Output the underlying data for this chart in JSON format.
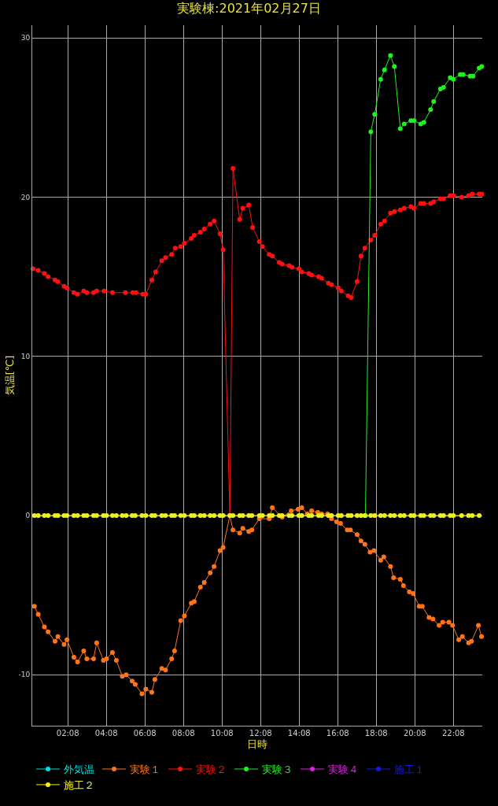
{
  "chart_data": {
    "type": "line",
    "title": "実験棟:2021年02月27日",
    "xlabel": "日時",
    "ylabel": "気温[℃]",
    "xlim": [
      0.29,
      23.63
    ],
    "ylim": [
      -13.2,
      30.8
    ],
    "xticks": [
      {
        "value": 2.133,
        "label": "02:08"
      },
      {
        "value": 4.133,
        "label": "04:08"
      },
      {
        "value": 6.133,
        "label": "06:08"
      },
      {
        "value": 8.133,
        "label": "08:08"
      },
      {
        "value": 10.133,
        "label": "10:08"
      },
      {
        "value": 12.133,
        "label": "12:08"
      },
      {
        "value": 14.133,
        "label": "14:08"
      },
      {
        "value": 16.133,
        "label": "16:08"
      },
      {
        "value": 18.133,
        "label": "18:08"
      },
      {
        "value": 20.133,
        "label": "20:08"
      },
      {
        "value": 22.133,
        "label": "22:08"
      }
    ],
    "yticks": [
      -10,
      0,
      10,
      20,
      30
    ],
    "grid": true,
    "legend": "bottom",
    "marker": "circle",
    "line_style": "solid",
    "series": [
      {
        "name": "外気温",
        "color": "#00e0e0"
      },
      {
        "name": "実験１",
        "color": "#ff7418",
        "x": [
          0.4,
          0.6,
          0.92,
          1.11,
          1.47,
          1.62,
          1.94,
          2.09,
          2.45,
          2.64,
          2.96,
          3.12,
          3.47,
          3.63,
          3.98,
          4.14,
          4.45,
          4.65,
          4.96,
          5.16,
          5.47,
          5.63,
          5.98,
          6.18,
          6.49,
          6.65,
          7.01,
          7.2,
          7.52,
          7.67,
          7.99,
          8.18,
          8.54,
          8.69,
          9.01,
          9.21,
          9.52,
          9.72,
          10.03,
          10.19,
          10.54,
          10.7,
          11.05,
          11.21,
          11.52,
          11.68,
          12.07,
          12.58,
          12.74,
          13.25,
          13.72,
          14.08,
          14.27,
          14.55,
          14.78,
          15.1,
          15.3,
          15.61,
          15.81,
          16.08,
          16.28,
          16.63,
          16.79,
          17.14,
          17.34,
          17.54,
          17.81,
          18.01,
          18.36,
          18.52,
          18.87,
          19.03,
          19.38,
          19.54,
          19.85,
          20.05,
          20.36,
          20.52,
          20.87,
          21.07,
          21.39,
          21.58,
          21.9,
          22.09,
          22.41,
          22.6,
          22.92,
          23.07,
          23.43,
          23.59
        ],
        "values": [
          -5.7,
          -6.2,
          -7.0,
          -7.3,
          -7.9,
          -7.6,
          -8.1,
          -7.8,
          -8.9,
          -9.2,
          -8.5,
          -9.0,
          -9.0,
          -8.0,
          -9.1,
          -9.0,
          -8.6,
          -9.1,
          -10.1,
          -10.0,
          -10.4,
          -10.6,
          -11.2,
          -10.9,
          -11.1,
          -10.3,
          -9.6,
          -9.7,
          -9.0,
          -8.5,
          -6.6,
          -6.3,
          -5.5,
          -5.4,
          -4.5,
          -4.2,
          -3.6,
          -3.2,
          -2.2,
          -2.0,
          0.0,
          -0.9,
          -1.1,
          -0.8,
          -1.0,
          -0.9,
          -0.2,
          -0.2,
          0.5,
          -0.1,
          0.3,
          0.4,
          0.5,
          0.1,
          0.3,
          0.2,
          0.1,
          0.1,
          -0.2,
          -0.4,
          -0.5,
          -0.9,
          -0.9,
          -1.2,
          -1.6,
          -1.8,
          -2.3,
          -2.2,
          -2.8,
          -2.6,
          -3.2,
          -3.9,
          -4.0,
          -4.4,
          -4.8,
          -4.9,
          -5.7,
          -5.7,
          -6.4,
          -6.5,
          -6.9,
          -6.7,
          -6.7,
          -6.9,
          -7.8,
          -7.6,
          -8.0,
          -7.9,
          -6.9,
          -7.6
        ]
      },
      {
        "name": "実験２",
        "color": "#ff1010",
        "x": [
          0.33,
          0.6,
          0.92,
          1.11,
          1.47,
          1.62,
          1.94,
          2.09,
          2.45,
          2.64,
          2.96,
          3.12,
          3.47,
          3.63,
          4.02,
          4.45,
          5.12,
          5.51,
          5.67,
          6.02,
          6.18,
          6.49,
          6.69,
          7.01,
          7.2,
          7.52,
          7.71,
          7.99,
          8.18,
          8.54,
          8.69,
          9.01,
          9.21,
          9.52,
          9.72,
          10.03,
          10.19,
          10.54,
          10.7,
          11.05,
          11.21,
          11.52,
          11.72,
          12.07,
          12.23,
          12.58,
          12.74,
          13.1,
          13.25,
          13.61,
          13.76,
          14.12,
          14.27,
          14.63,
          14.78,
          15.14,
          15.3,
          15.65,
          15.81,
          16.16,
          16.32,
          16.67,
          16.83,
          17.14,
          17.34,
          17.54,
          17.85,
          18.05,
          18.36,
          18.56,
          18.87,
          19.07,
          19.38,
          19.58,
          19.93,
          20.09,
          20.44,
          20.6,
          20.95,
          21.11,
          21.46,
          21.62,
          21.97,
          22.13,
          22.56,
          22.92,
          23.11,
          23.47,
          23.6
        ],
        "values": [
          15.5,
          15.4,
          15.2,
          15.0,
          14.8,
          14.7,
          14.4,
          14.3,
          14.0,
          13.9,
          14.1,
          14.0,
          14.0,
          14.1,
          14.1,
          14.0,
          14.0,
          14.0,
          14.0,
          13.9,
          13.9,
          14.8,
          15.3,
          16.0,
          16.2,
          16.4,
          16.8,
          16.9,
          17.1,
          17.4,
          17.6,
          17.8,
          18.0,
          18.3,
          18.5,
          17.7,
          16.7,
          0.0,
          21.8,
          18.6,
          19.3,
          19.5,
          18.1,
          17.2,
          16.9,
          16.4,
          16.3,
          15.9,
          15.8,
          15.7,
          15.6,
          15.5,
          15.3,
          15.2,
          15.1,
          15.0,
          14.9,
          14.6,
          14.5,
          14.3,
          14.1,
          13.8,
          13.7,
          14.7,
          16.3,
          16.8,
          17.3,
          17.6,
          18.3,
          18.5,
          19.0,
          19.1,
          19.2,
          19.3,
          19.4,
          19.3,
          19.6,
          19.6,
          19.6,
          19.7,
          19.9,
          19.9,
          20.1,
          20.1,
          20.0,
          20.1,
          20.2,
          20.2,
          20.2
        ]
      },
      {
        "name": "実験３",
        "color": "#20f020",
        "x": [
          17.57,
          17.85,
          18.05,
          18.36,
          18.56,
          18.87,
          19.07,
          19.38,
          19.58,
          19.93,
          20.09,
          20.44,
          20.6,
          20.95,
          21.11,
          21.46,
          21.62,
          21.97,
          22.13,
          22.49,
          22.64,
          23.0,
          23.15,
          23.47,
          23.6
        ],
        "values": [
          0.0,
          24.1,
          25.2,
          27.4,
          28.0,
          28.9,
          28.2,
          24.3,
          24.6,
          24.8,
          24.8,
          24.6,
          24.7,
          25.5,
          26.0,
          26.8,
          26.9,
          27.5,
          27.4,
          27.7,
          27.7,
          27.6,
          27.6,
          28.1,
          28.2
        ]
      },
      {
        "name": "実験４",
        "color": "#e020e0"
      },
      {
        "name": "施工１",
        "color": "#1818d8"
      },
      {
        "name": "施工２",
        "color": "#f0f020",
        "x": [
          0.4,
          0.6,
          0.92,
          1.11,
          1.47,
          1.62,
          1.94,
          2.09,
          2.45,
          2.64,
          2.96,
          3.12,
          3.47,
          3.63,
          3.98,
          4.14,
          4.45,
          4.65,
          4.96,
          5.16,
          5.47,
          5.63,
          5.98,
          6.18,
          6.49,
          6.65,
          7.01,
          7.2,
          7.52,
          7.67,
          7.99,
          8.18,
          8.54,
          8.69,
          9.01,
          9.21,
          9.52,
          9.72,
          10.03,
          10.19,
          10.54,
          10.7,
          11.05,
          11.21,
          11.52,
          11.68,
          12.07,
          12.23,
          12.58,
          12.74,
          13.1,
          13.25,
          13.61,
          13.76,
          14.12,
          14.27,
          14.63,
          14.78,
          15.14,
          15.3,
          15.65,
          15.81,
          16.16,
          16.32,
          16.67,
          16.83,
          17.14,
          17.34,
          17.54,
          17.85,
          18.05,
          18.36,
          18.56,
          18.87,
          19.07,
          19.38,
          19.58,
          19.93,
          20.09,
          20.44,
          20.6,
          20.95,
          21.11,
          21.46,
          21.62,
          21.97,
          22.13,
          22.56,
          22.92,
          23.11,
          23.47
        ],
        "values": [
          0,
          0,
          0,
          0,
          0,
          0,
          0,
          0,
          0,
          0,
          0,
          0,
          0,
          0,
          0,
          0,
          0,
          0,
          0,
          0,
          0,
          0,
          0,
          0,
          0,
          0,
          0,
          0,
          0,
          0,
          0,
          0,
          0,
          0,
          0,
          0,
          0,
          0,
          0,
          0,
          0,
          0,
          0,
          0,
          0,
          0,
          0,
          0,
          0,
          0,
          0,
          0,
          0,
          0,
          0,
          0,
          0,
          0,
          0,
          0,
          0,
          0,
          0,
          0,
          0,
          0,
          0,
          0,
          0,
          0,
          0,
          0,
          0,
          0,
          0,
          0,
          0,
          0,
          0,
          0,
          0,
          0,
          0,
          0,
          0,
          0,
          0,
          0,
          0,
          0,
          0
        ]
      }
    ]
  }
}
